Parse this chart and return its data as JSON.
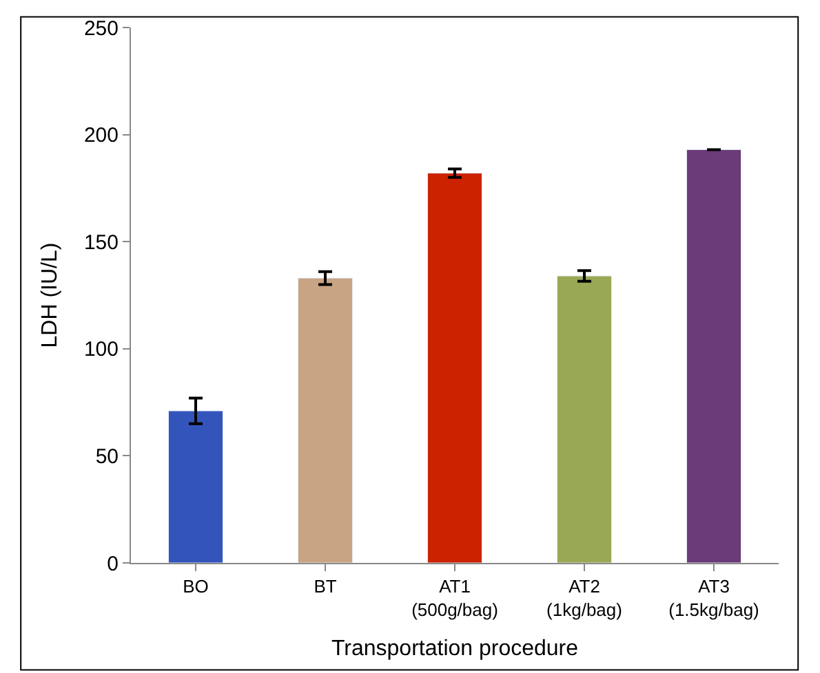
{
  "chart_data": {
    "type": "bar",
    "xlabel": "Transportation procedure",
    "ylabel": "LDH (IU/L)",
    "categories": [
      "BO",
      "BT",
      "AT1\n(500g/bag)",
      "AT2\n(1kg/bag)",
      "AT3\n(1.5kg/bag)"
    ],
    "values": [
      71,
      133,
      182,
      134,
      193
    ],
    "colors": [
      "#3355bb",
      "#c8a484",
      "#cc2200",
      "#99a855",
      "#6b3a78"
    ],
    "errors": [
      6,
      3,
      2,
      2.5,
      null
    ],
    "ylim": [
      0,
      250
    ],
    "yticks": [
      0,
      50,
      100,
      150,
      200,
      250
    ]
  }
}
